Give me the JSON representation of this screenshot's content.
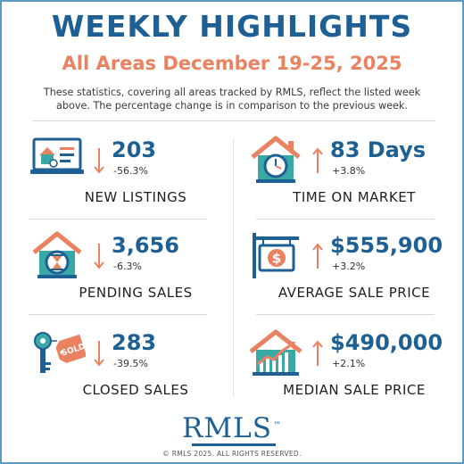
{
  "header": {
    "title": "WEEKLY HIGHLIGHTS",
    "subtitle": "All Areas December 19-25, 2025",
    "intro_line1": "These statistics, covering all areas tracked by RMLS, reflect the listed week",
    "intro_line2": "above. The percentage change is in comparison to the previous week."
  },
  "stats": [
    {
      "value": "203",
      "change": "-56.3%",
      "label": "NEW LISTINGS",
      "direction": "down",
      "icon": "laptop-house-icon"
    },
    {
      "value": "83 Days",
      "change": "+3.8%",
      "label": "TIME ON MARKET",
      "direction": "up",
      "icon": "house-clock-icon"
    },
    {
      "value": "3,656",
      "change": "-6.3%",
      "label": "PENDING SALES",
      "direction": "down",
      "icon": "house-hourglass-icon"
    },
    {
      "value": "$555,900",
      "change": "+3.2%",
      "label": "AVERAGE SALE PRICE",
      "direction": "up",
      "icon": "dollar-sign-post-icon"
    },
    {
      "value": "283",
      "change": "-39.5%",
      "label": "CLOSED SALES",
      "direction": "down",
      "icon": "key-sold-tag-icon"
    },
    {
      "value": "$490,000",
      "change": "+2.1%",
      "label": "MEDIAN SALE PRICE",
      "direction": "up",
      "icon": "house-chart-icon"
    }
  ],
  "icons": {
    "sold_tag_text": "SOLD"
  },
  "footer": {
    "logo": "RMLS",
    "trademark": "™",
    "copyright": "© RMLS 2025. ALL RIGHTS RESERVED."
  },
  "colors": {
    "navy": "#1e5f94",
    "coral": "#ea8261",
    "teal": "#3aa8a5",
    "border": "#5b9bc6"
  }
}
